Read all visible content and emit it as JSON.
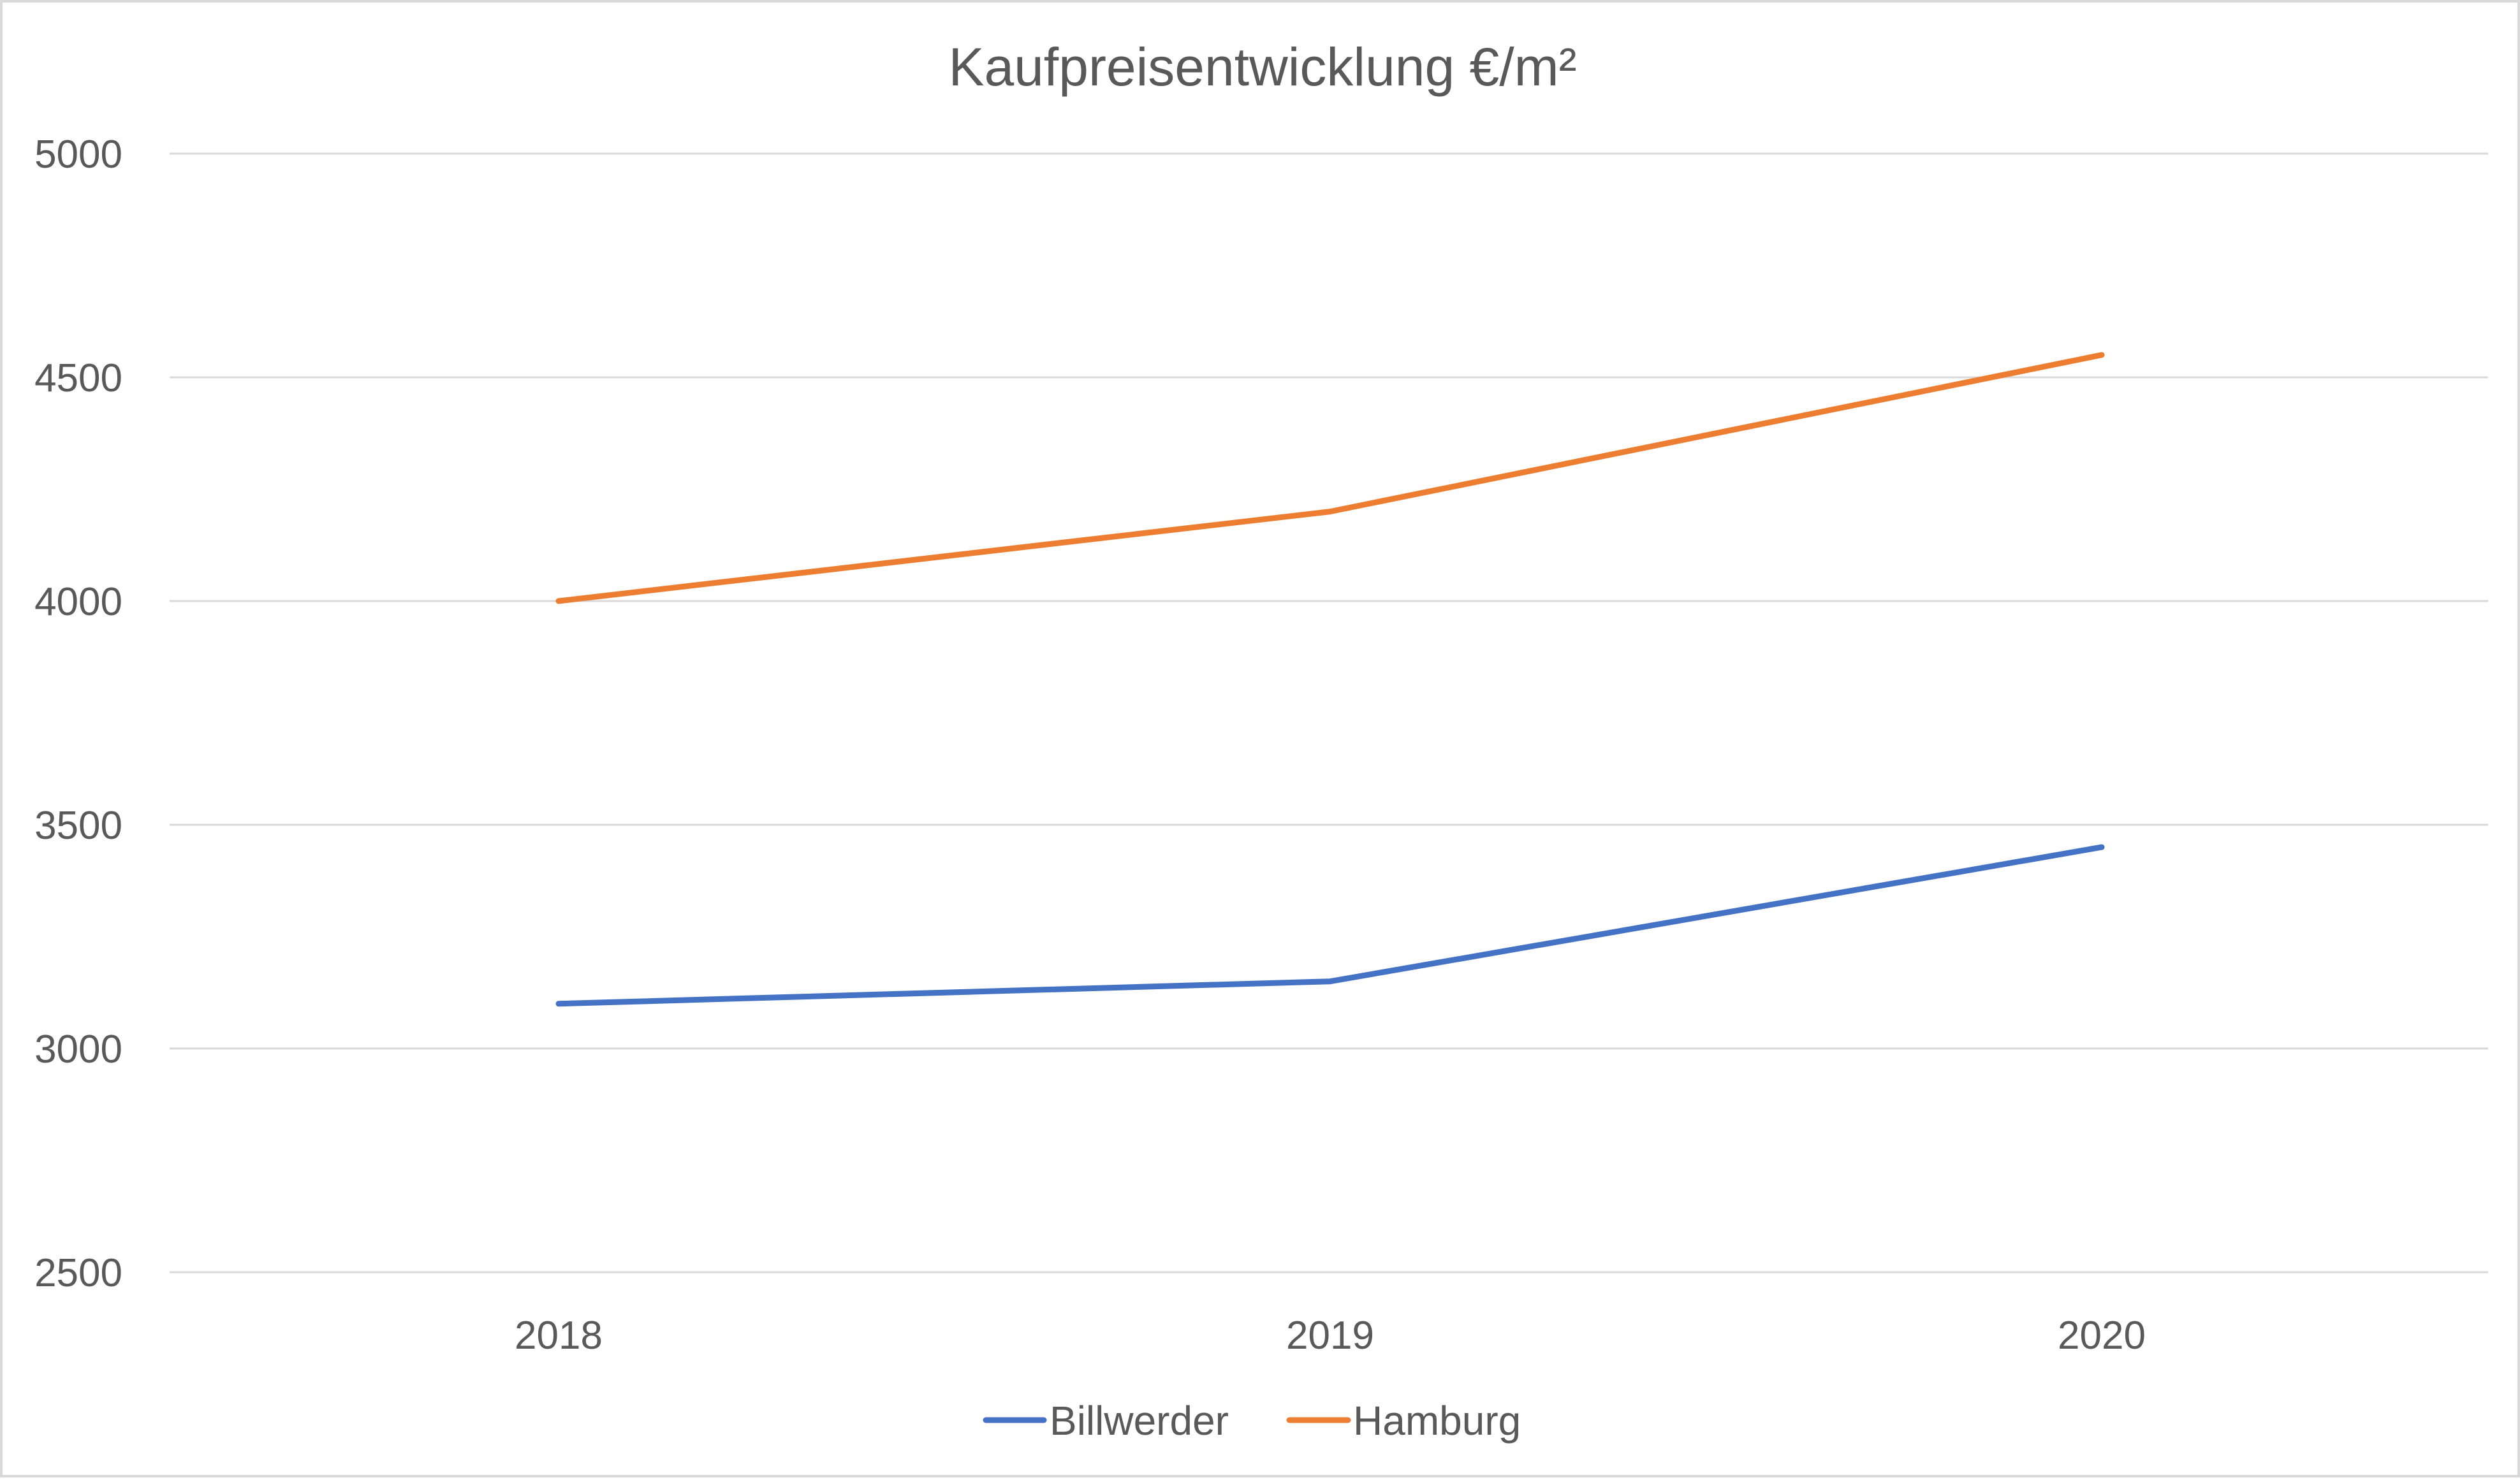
{
  "chart_data": {
    "type": "line",
    "title": "Kaufpreisentwicklung  €/m²",
    "xlabel": "",
    "ylabel": "",
    "categories": [
      "2018",
      "2019",
      "2020"
    ],
    "ylim": [
      2500,
      5000
    ],
    "yticks": [
      2500,
      3000,
      3500,
      4000,
      4500,
      5000
    ],
    "ytick_labels": [
      "2500",
      "3000",
      "3500",
      "4000",
      "4500",
      "5000"
    ],
    "grid": true,
    "legend_position": "bottom",
    "series": [
      {
        "name": "Billwerder",
        "color": "#4472c4",
        "values": [
          3100,
          3150,
          3450
        ]
      },
      {
        "name": "Hamburg",
        "color": "#ed7d31",
        "values": [
          4000,
          4200,
          4550
        ]
      }
    ],
    "colors": {
      "grid": "#d9d9d9",
      "text": "#595959",
      "border": "#d9d9d9"
    }
  }
}
